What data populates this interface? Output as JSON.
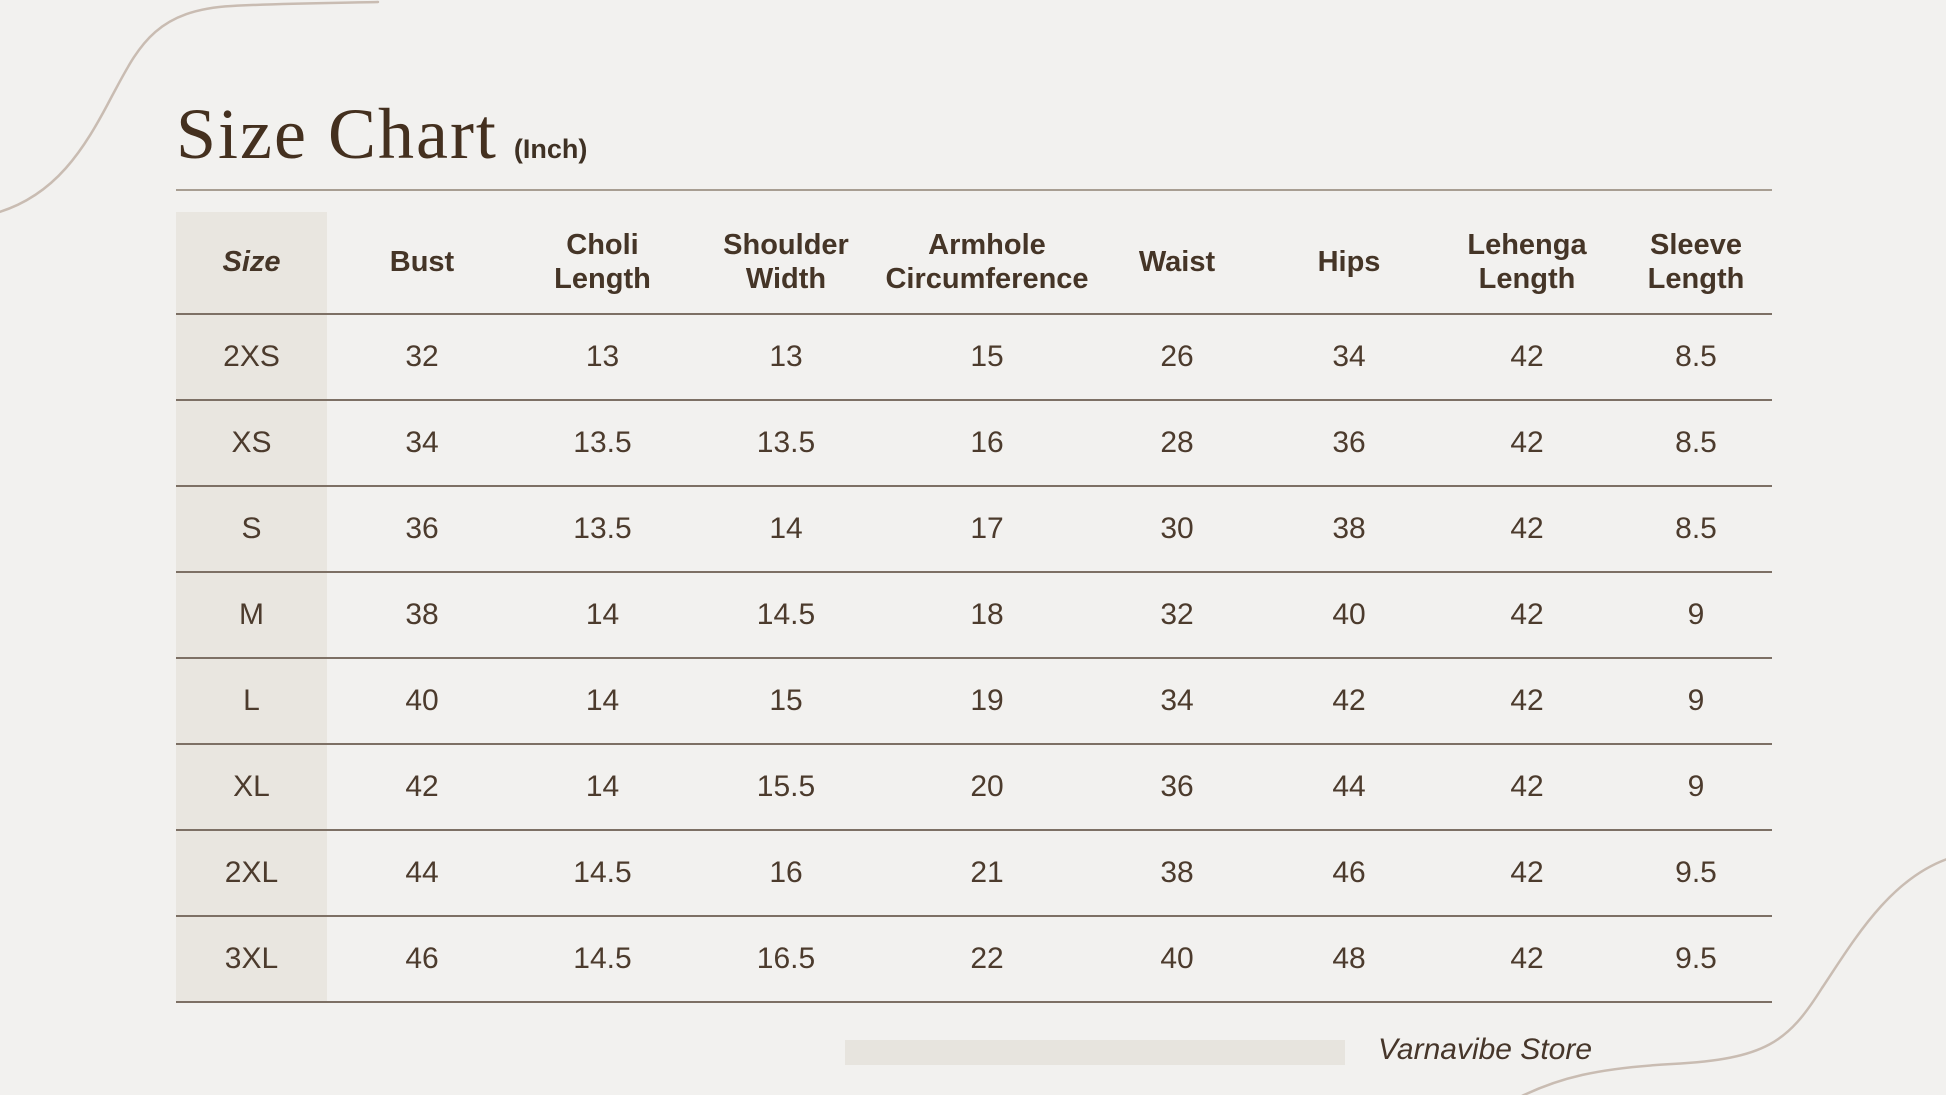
{
  "header": {
    "title": "Size Chart",
    "unit": "(Inch)"
  },
  "table": {
    "columns": [
      "Size",
      "Bust",
      "Choli Length",
      "Shoulder Width",
      "Armhole Circumference",
      "Waist",
      "Hips",
      "Lehenga Length",
      "Sleeve Length"
    ],
    "rows": [
      {
        "size": "2XS",
        "values": [
          "32",
          "13",
          "13",
          "15",
          "26",
          "34",
          "42",
          "8.5"
        ]
      },
      {
        "size": "XS",
        "values": [
          "34",
          "13.5",
          "13.5",
          "16",
          "28",
          "36",
          "42",
          "8.5"
        ]
      },
      {
        "size": "S",
        "values": [
          "36",
          "13.5",
          "14",
          "17",
          "30",
          "38",
          "42",
          "8.5"
        ]
      },
      {
        "size": "M",
        "values": [
          "38",
          "14",
          "14.5",
          "18",
          "32",
          "40",
          "42",
          "9"
        ]
      },
      {
        "size": "L",
        "values": [
          "40",
          "14",
          "15",
          "19",
          "34",
          "42",
          "42",
          "9"
        ]
      },
      {
        "size": "XL",
        "values": [
          "42",
          "14",
          "15.5",
          "20",
          "36",
          "44",
          "42",
          "9"
        ]
      },
      {
        "size": "2XL",
        "values": [
          "44",
          "14.5",
          "16",
          "21",
          "38",
          "46",
          "42",
          "9.5"
        ]
      },
      {
        "size": "3XL",
        "values": [
          "46",
          "14.5",
          "16.5",
          "22",
          "40",
          "48",
          "42",
          "9.5"
        ]
      }
    ]
  },
  "footer": {
    "brand": "Varnavibe Store"
  },
  "colors": {
    "background": "#f2f1ef",
    "text_dark_brown": "#46362a",
    "title_brown": "#44301f",
    "size_column_bg": "#e9e6e0",
    "row_line": "#7d7065",
    "title_rule": "#a89e92",
    "decorative_curve": "#c9bcb2",
    "footer_bar_bg": "#e7e4de"
  },
  "chart_data": {
    "type": "table",
    "title": "Size Chart",
    "unit_label": "(Inch)",
    "columns": [
      "Size",
      "Bust",
      "Choli Length",
      "Shoulder Width",
      "Armhole Circumference",
      "Waist",
      "Hips",
      "Lehenga Length",
      "Sleeve Length"
    ],
    "rows": [
      [
        "2XS",
        32,
        13,
        13,
        15,
        26,
        34,
        42,
        8.5
      ],
      [
        "XS",
        34,
        13.5,
        13.5,
        16,
        28,
        36,
        42,
        8.5
      ],
      [
        "S",
        36,
        13.5,
        14,
        17,
        30,
        38,
        42,
        8.5
      ],
      [
        "M",
        38,
        14,
        14.5,
        18,
        32,
        40,
        42,
        9
      ],
      [
        "L",
        40,
        14,
        15,
        19,
        34,
        42,
        42,
        9
      ],
      [
        "XL",
        42,
        14,
        15.5,
        20,
        36,
        44,
        42,
        9
      ],
      [
        "2XL",
        44,
        14.5,
        16,
        21,
        38,
        46,
        42,
        9.5
      ],
      [
        "3XL",
        46,
        14.5,
        16.5,
        22,
        40,
        48,
        42,
        9.5
      ]
    ],
    "annotations": [
      "Varnavibe Store"
    ]
  }
}
